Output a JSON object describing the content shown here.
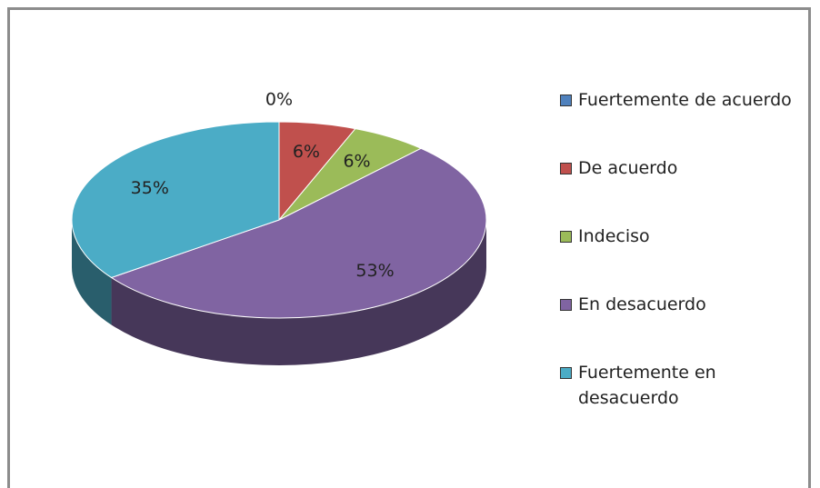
{
  "chart_data": {
    "type": "pie",
    "categories": [
      "Fuertemente de acuerdo",
      "De acuerdo",
      "Indeciso",
      "En desacuerdo",
      "Fuertemente en desacuerdo"
    ],
    "values": [
      0,
      6,
      6,
      53,
      35
    ],
    "value_labels": [
      "0%",
      "6%",
      "6%",
      "53%",
      "35%"
    ],
    "colors": [
      "#4f81bd",
      "#c0504d",
      "#9bbb59",
      "#8064a2",
      "#4bacc6"
    ],
    "legend": "right"
  }
}
